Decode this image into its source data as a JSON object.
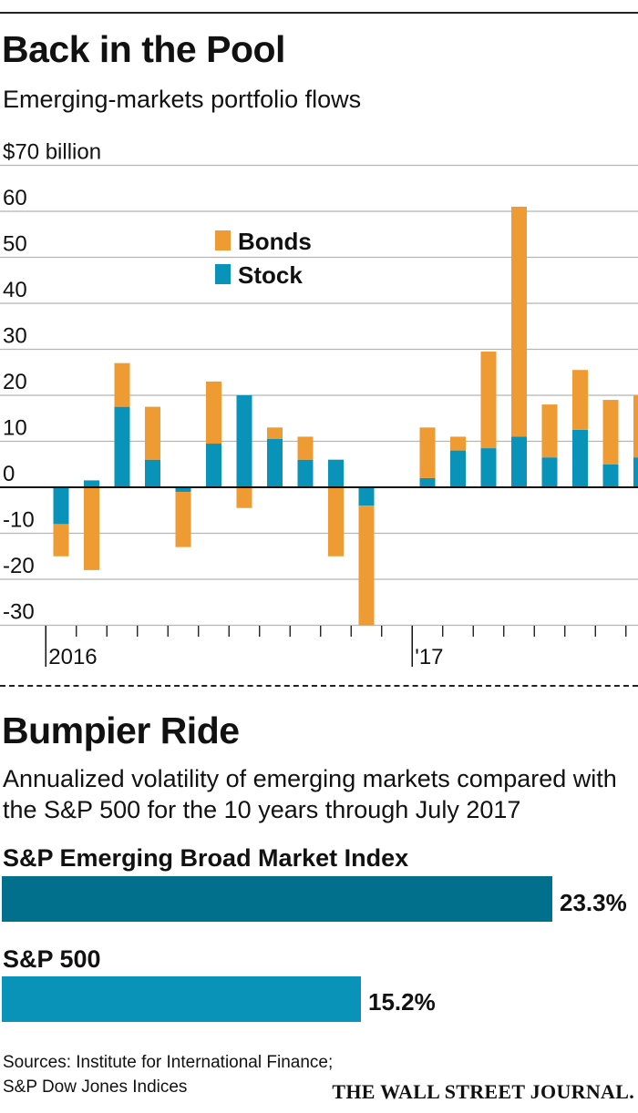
{
  "header": {
    "title": "Back in the Pool",
    "subtitle": "Emerging-markets portfolio flows"
  },
  "chart_data": [
    {
      "type": "bar",
      "stacked": true,
      "title": "Back in the Pool",
      "subtitle": "Emerging-markets portfolio flows",
      "y_unit_label": "$70 billion",
      "ylim": [
        -30,
        70
      ],
      "y_ticks": [
        70,
        60,
        50,
        40,
        30,
        20,
        10,
        0,
        -10,
        -20,
        -30
      ],
      "y_tick_labels": [
        "$70 billion",
        "60",
        "50",
        "40",
        "30",
        "20",
        "10",
        "0",
        "-10",
        "-20",
        "-30"
      ],
      "x_tick_labels": [
        "2016",
        "'17"
      ],
      "x_tick_label_months": [
        "2016-01",
        "2017-01"
      ],
      "grid": true,
      "legend": {
        "position": "top-center",
        "entries": [
          "Bonds",
          "Stock"
        ]
      },
      "months": [
        "2016-01",
        "2016-02",
        "2016-03",
        "2016-04",
        "2016-05",
        "2016-06",
        "2016-07",
        "2016-08",
        "2016-09",
        "2016-10",
        "2016-11",
        "2016-12",
        "2017-01",
        "2017-02",
        "2017-03",
        "2017-04",
        "2017-05",
        "2017-06",
        "2017-07",
        "2017-08"
      ],
      "series": [
        {
          "name": "Stock",
          "color": "#0a93b8",
          "values": [
            -8,
            1.5,
            17.5,
            6,
            -1,
            9.5,
            20,
            10.5,
            6,
            6,
            -4,
            0,
            2,
            8,
            8.5,
            11,
            6.5,
            12.5,
            5,
            6.5
          ]
        },
        {
          "name": "Bonds",
          "color": "#ee9b34",
          "values": [
            -7,
            -18,
            9.5,
            11.5,
            -12,
            13.5,
            -4.5,
            2.5,
            5,
            -15,
            -26,
            0,
            11,
            3,
            21,
            50,
            11.5,
            13,
            14,
            13.5
          ]
        }
      ]
    },
    {
      "type": "bar",
      "orientation": "horizontal",
      "title": "Bumpier Ride",
      "subtitle": "Annualized volatility of emerging markets compared with the S&P 500 for the 10 years through July 2017",
      "unit": "%",
      "categories": [
        "S&P Emerging Broad Market Index",
        "S&P 500"
      ],
      "values": [
        23.3,
        15.2
      ],
      "value_labels": [
        "23.3%",
        "15.2%"
      ],
      "colors": [
        "#00708c",
        "#0a93b8"
      ]
    }
  ],
  "section2": {
    "title": "Bumpier Ride",
    "description": "Annualized volatility of emerging markets compared with the S&P 500 for the 10 years through July 2017",
    "bars": [
      {
        "label": "S&P Emerging Broad Market Index",
        "value": 23.3,
        "value_label": "23.3%",
        "color": "#00708c"
      },
      {
        "label": "S&P 500",
        "value": 15.2,
        "value_label": "15.2%",
        "color": "#0a93b8"
      }
    ]
  },
  "footer": {
    "sources_line1": "Sources: Institute for International Finance;",
    "sources_line2": "S&P Dow Jones Indices",
    "brand": "THE WALL STREET JOURNAL."
  }
}
